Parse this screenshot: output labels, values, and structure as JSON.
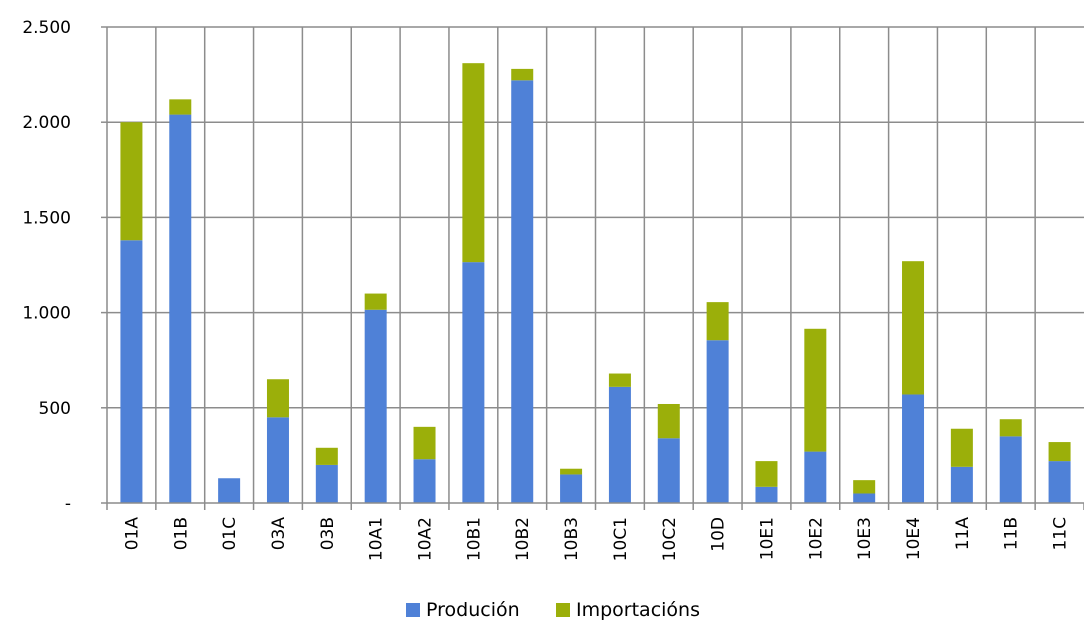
{
  "chart_data": {
    "type": "bar",
    "stacked": true,
    "title": "",
    "xlabel": "",
    "ylabel": "",
    "ylim": [
      0,
      2500
    ],
    "y_ticks": [
      0,
      500,
      1000,
      1500,
      2000,
      2500
    ],
    "y_tick_labels": [
      "-",
      "500",
      "1.000",
      "1.500",
      "2.000",
      "2.500"
    ],
    "grid": "both",
    "legend_position": "bottom",
    "categories": [
      "01A",
      "01B",
      "01C",
      "03A",
      "03B",
      "10A1",
      "10A2",
      "10B1",
      "10B2",
      "10B3",
      "10C1",
      "10C2",
      "10D",
      "10E1",
      "10E2",
      "10E3",
      "10E4",
      "11A",
      "11B",
      "11C"
    ],
    "series": [
      {
        "name": "Produción",
        "color": "#4F81D7",
        "values": [
          1380,
          2040,
          130,
          450,
          200,
          1015,
          230,
          1265,
          2220,
          150,
          610,
          340,
          855,
          85,
          270,
          50,
          570,
          190,
          350,
          220
        ]
      },
      {
        "name": "Importacións",
        "color": "#9BAF0A",
        "values": [
          620,
          80,
          0,
          200,
          90,
          85,
          170,
          1045,
          60,
          30,
          70,
          180,
          200,
          135,
          645,
          70,
          700,
          200,
          90,
          100
        ]
      }
    ]
  }
}
